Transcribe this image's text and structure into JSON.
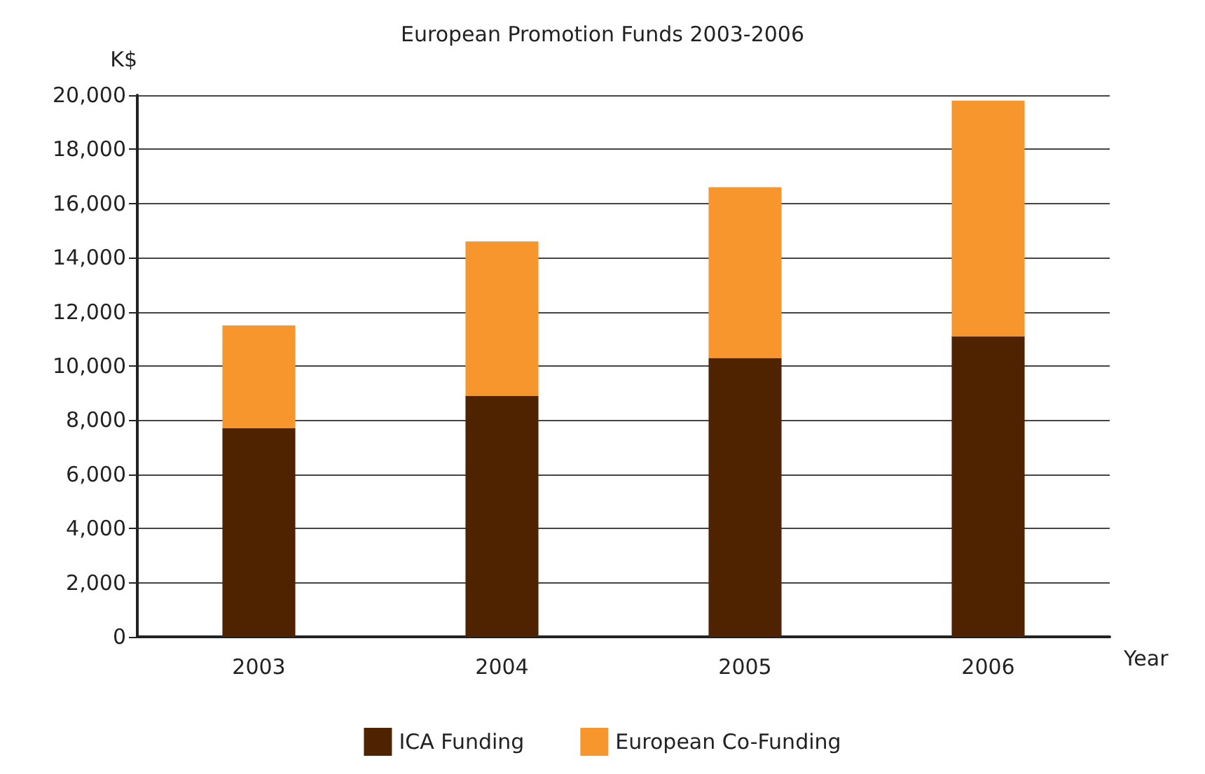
{
  "chart_data": {
    "type": "bar",
    "title": "European Promotion Funds 2003-2006",
    "xlabel": "Year",
    "ylabel": "K$",
    "categories": [
      "2003",
      "2004",
      "2005",
      "2006"
    ],
    "stacked": true,
    "series": [
      {
        "name": "ICA Funding",
        "color": "#4f2300",
        "values": [
          7700,
          8900,
          10300,
          11100
        ]
      },
      {
        "name": "European Co-Funding",
        "color": "#f7962d",
        "values": [
          3800,
          5700,
          6300,
          8700
        ]
      }
    ],
    "ylim": [
      0,
      20000
    ],
    "yticks": [
      0,
      {
        "value": 2000,
        "label": "2,000"
      },
      {
        "value": 4000,
        "label": "4,000"
      },
      {
        "value": 6000,
        "label": "6,000"
      },
      {
        "value": 8000,
        "label": "8,000"
      },
      {
        "value": 10000,
        "label": "10,000"
      },
      {
        "value": 12000,
        "label": "12,000"
      },
      {
        "value": 14000,
        "label": "14,000"
      },
      {
        "value": 16000,
        "label": "16,000"
      },
      {
        "value": 18000,
        "label": "18,000"
      },
      {
        "value": 20000,
        "label": "20,000"
      }
    ],
    "grid": "y",
    "legend": "bottom"
  }
}
